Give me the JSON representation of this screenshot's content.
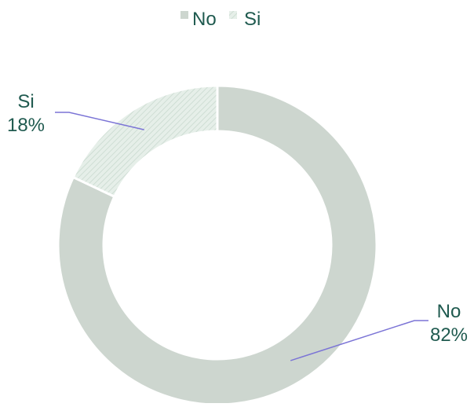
{
  "chart_data": {
    "type": "pie",
    "variant": "donut",
    "title": "",
    "legend": {
      "position": "top",
      "entries": [
        {
          "name": "No",
          "color": "#b9c7bd"
        },
        {
          "name": "Si",
          "color": "#dde8e2"
        }
      ]
    },
    "slices": [
      {
        "label": "No",
        "value": 82,
        "value_label": "82%",
        "color": "#b9c7bd"
      },
      {
        "label": "Si",
        "value": 18,
        "value_label": "18%",
        "color": "#dde8e2"
      }
    ],
    "label_color": "#1f5a4f",
    "leader_color": "#7b74d6"
  }
}
